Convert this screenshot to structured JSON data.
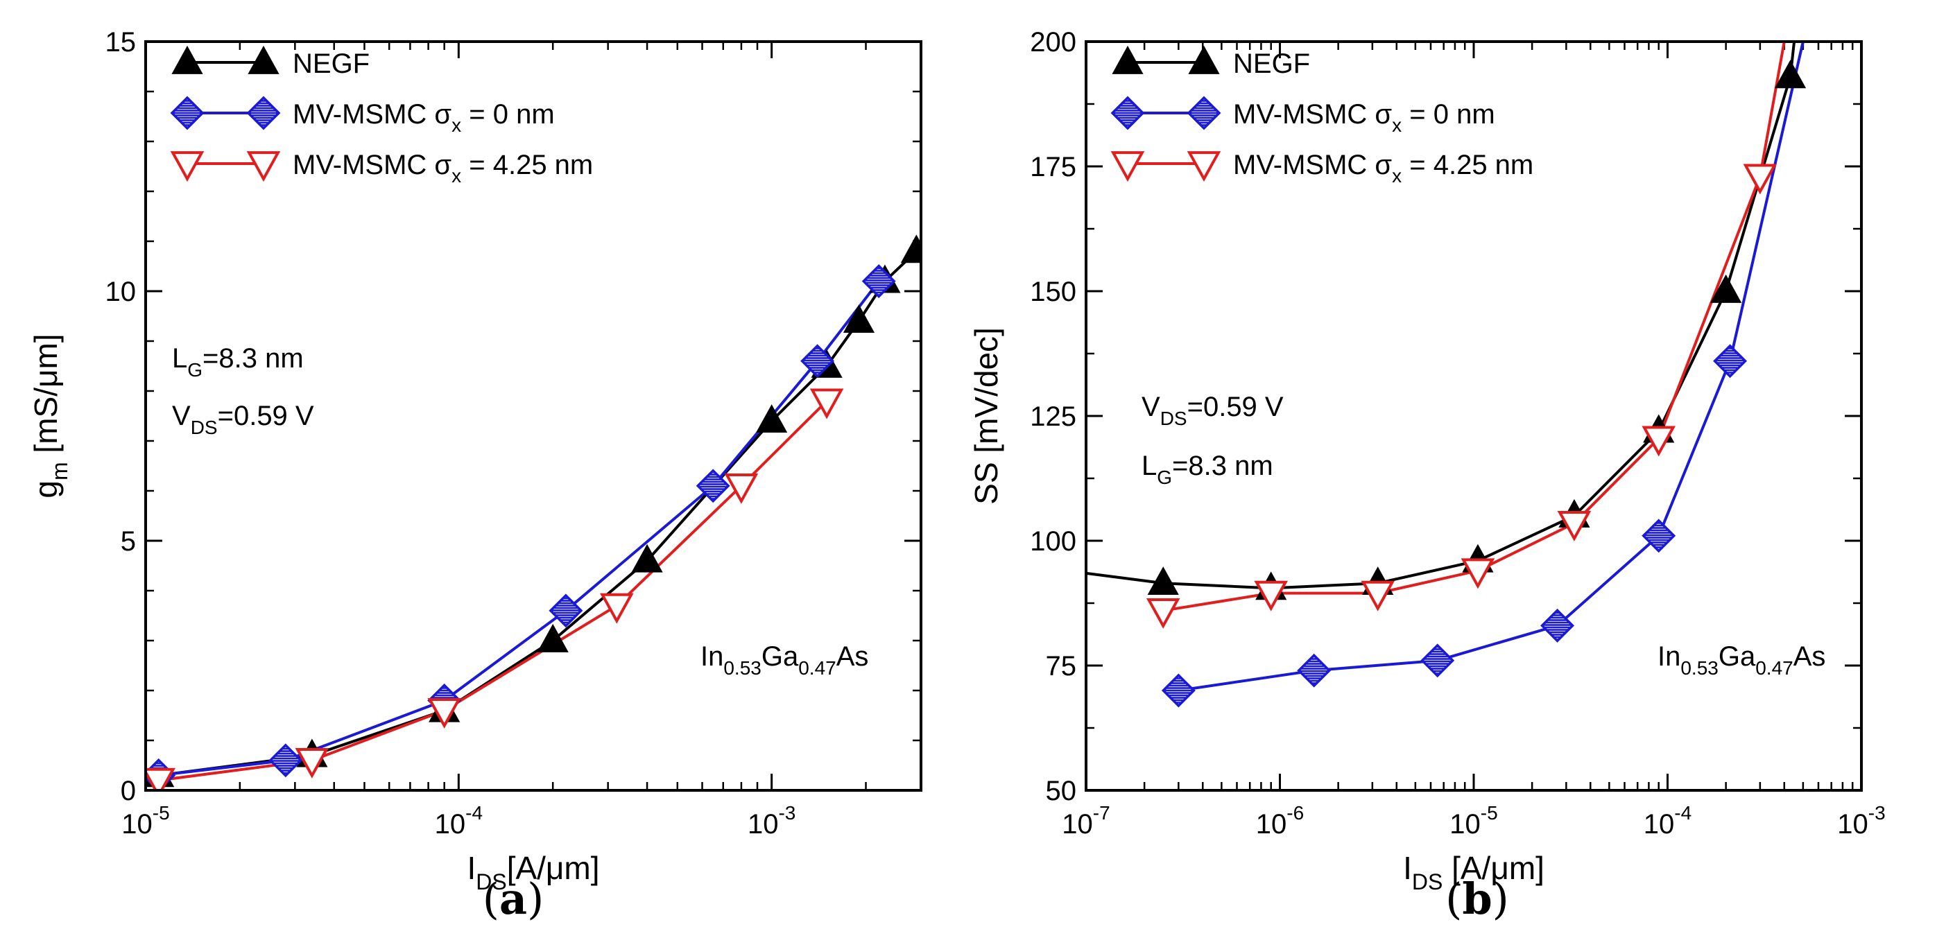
{
  "colors": {
    "negf": "#000000",
    "mv_msmc_0": "#1a1ad6",
    "mv_msmc_425": "#e01e1e",
    "axes": "#000000"
  },
  "legend": {
    "negf": "NEGF",
    "mv_msmc_0": "MV-MSMC σ_x = 0 nm",
    "mv_msmc_425": "MV-MSMC σ_x = 4.25 nm"
  },
  "chart_data": [
    {
      "type": "line",
      "panel_label": "(a)",
      "caption_letter": "a",
      "xscale": "log",
      "xlim": [
        1e-05,
        0.003
      ],
      "ylim": [
        0,
        15
      ],
      "xticks": [
        1e-05,
        0.0001,
        0.001
      ],
      "xtick_labels": [
        {
          "base": "10",
          "exp": "-5"
        },
        {
          "base": "10",
          "exp": "-4"
        },
        {
          "base": "10",
          "exp": "-3"
        }
      ],
      "yticks": [
        0,
        5,
        10,
        15
      ],
      "ytick_labels": [
        "0",
        "5",
        "10",
        "15"
      ],
      "xlabel": {
        "main": "I",
        "sub": "DS",
        "rest": "[A/μm]"
      },
      "ylabel": {
        "main": "g",
        "sub": "m",
        "rest": " [mS/μm]"
      },
      "legend_placement": "top-left",
      "annotations": [
        {
          "id": "lg",
          "main": "L",
          "sub": "G",
          "rest": "=8.3 nm"
        },
        {
          "id": "vds",
          "main": "V",
          "sub": "DS",
          "rest": "=0.59 V"
        },
        {
          "id": "material",
          "parts": [
            "In",
            "0.53",
            "Ga",
            "0.47",
            "As"
          ]
        }
      ],
      "series": [
        {
          "name": "NEGF",
          "marker": "triangle-up",
          "x": [
            1.1e-05,
            3.4e-05,
            9e-05,
            0.0002,
            0.0004,
            0.001,
            0.0015,
            0.0019,
            0.0023,
            0.0029
          ],
          "y": [
            0.3,
            0.7,
            1.6,
            3.0,
            4.6,
            7.4,
            8.5,
            9.4,
            10.2,
            10.8
          ]
        },
        {
          "name": "MV-MSMC σx = 0 nm",
          "marker": "diamond-hatched",
          "x": [
            1.1e-05,
            2.8e-05,
            9e-05,
            0.00022,
            0.00065,
            0.0014,
            0.0022
          ],
          "y": [
            0.3,
            0.6,
            1.8,
            3.6,
            6.1,
            8.6,
            10.2
          ]
        },
        {
          "name": "MV-MSMC σx = 4.25 nm",
          "marker": "triangle-down-open",
          "x": [
            1.1e-05,
            3.4e-05,
            9e-05,
            0.00032,
            0.0008,
            0.0015
          ],
          "y": [
            0.2,
            0.6,
            1.6,
            3.7,
            6.1,
            7.8
          ]
        }
      ]
    },
    {
      "type": "line",
      "panel_label": "(b)",
      "caption_letter": "b",
      "xscale": "log",
      "xlim": [
        1e-07,
        0.001
      ],
      "ylim": [
        50,
        200
      ],
      "xticks": [
        1e-07,
        1e-06,
        1e-05,
        0.0001,
        0.001
      ],
      "xtick_labels": [
        {
          "base": "10",
          "exp": "-7"
        },
        {
          "base": "10",
          "exp": "-6"
        },
        {
          "base": "10",
          "exp": "-5"
        },
        {
          "base": "10",
          "exp": "-4"
        },
        {
          "base": "10",
          "exp": "-3"
        }
      ],
      "yticks": [
        50,
        75,
        100,
        125,
        150,
        175,
        200
      ],
      "ytick_labels": [
        "50",
        "75",
        "100",
        "125",
        "150",
        "175",
        "200"
      ],
      "xlabel": {
        "main": "I",
        "sub": "DS",
        "rest": " [A/μm]"
      },
      "ylabel": {
        "main": "SS [mV/dec]",
        "sub": "",
        "rest": ""
      },
      "legend_placement": "top-left",
      "annotations": [
        {
          "id": "vds",
          "main": "V",
          "sub": "DS",
          "rest": "=0.59 V"
        },
        {
          "id": "lg",
          "main": "L",
          "sub": "G",
          "rest": "=8.3 nm"
        },
        {
          "id": "material",
          "parts": [
            "In",
            "0.53",
            "Ga",
            "0.47",
            "As"
          ]
        }
      ],
      "series": [
        {
          "name": "NEGF",
          "marker": "triangle-up",
          "x": [
            1e-07,
            2.5e-07,
            9e-07,
            3.2e-06,
            1.05e-05,
            3.3e-05,
            9e-05,
            0.0002,
            0.00043,
            0.00045
          ],
          "y": [
            93.5,
            91.5,
            90.5,
            91.5,
            96,
            105,
            122,
            150,
            193,
            200
          ],
          "markers_visible": [
            false,
            true,
            true,
            true,
            true,
            true,
            true,
            true,
            true,
            false
          ]
        },
        {
          "name": "MV-MSMC σx = 0 nm",
          "marker": "diamond-hatched",
          "x": [
            3e-07,
            1.5e-06,
            6.5e-06,
            2.7e-05,
            9e-05,
            0.00021,
            0.0005
          ],
          "y": [
            70,
            74,
            76,
            83,
            101,
            136,
            200
          ],
          "markers_visible": [
            true,
            true,
            true,
            true,
            true,
            true,
            false
          ]
        },
        {
          "name": "MV-MSMC σx = 4.25 nm",
          "marker": "triangle-down-open",
          "x": [
            2.5e-07,
            9e-07,
            3.2e-06,
            1.05e-05,
            3.3e-05,
            9e-05,
            0.0003,
            0.0004
          ],
          "y": [
            86,
            89.5,
            89.5,
            94,
            103.5,
            120.5,
            173,
            200
          ],
          "markers_visible": [
            true,
            true,
            true,
            true,
            true,
            true,
            true,
            false
          ]
        }
      ]
    }
  ]
}
